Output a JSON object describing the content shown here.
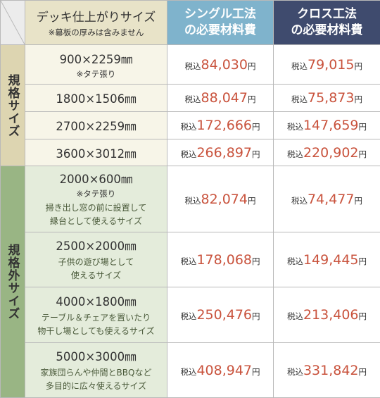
{
  "header": {
    "size_title": "デッキ仕上がりサイズ",
    "size_note": "※幕板の厚みは含みません",
    "single_line1": "シングル工法",
    "single_line2": "の必要材料費",
    "cross_line1": "クロス工法",
    "cross_line2": "の必要材料費"
  },
  "categories": {
    "standard": "規格サイズ",
    "custom": "規格外サイズ"
  },
  "price_prefix": "税込",
  "price_suffix": "円",
  "colors": {
    "price_number": "#c9533d",
    "single_header": "#7fb3cc",
    "cross_header": "#3f4b6e",
    "standard_category": "#ddd5b1",
    "custom_category": "#99b584"
  },
  "rows": [
    {
      "size": "900×2259㎜",
      "note": "※タテ張り",
      "desc1": "",
      "desc2": "",
      "single": "84,030",
      "cross": "79,015"
    },
    {
      "size": "1800×1506㎜",
      "note": "",
      "desc1": "",
      "desc2": "",
      "single": "88,047",
      "cross": "75,873"
    },
    {
      "size": "2700×2259㎜",
      "note": "",
      "desc1": "",
      "desc2": "",
      "single": "172,666",
      "cross": "147,659"
    },
    {
      "size": "3600×3012㎜",
      "note": "",
      "desc1": "",
      "desc2": "",
      "single": "266,897",
      "cross": "220,902"
    },
    {
      "size": "2000×600㎜",
      "note": "※タテ張り",
      "desc1": "掃き出し窓の前に設置して",
      "desc2": "縁台として使えるサイズ",
      "single": "82,074",
      "cross": "74,477"
    },
    {
      "size": "2500×2000㎜",
      "note": "",
      "desc1": "子供の遊び場として",
      "desc2": "使えるサイズ",
      "single": "178,068",
      "cross": "149,445"
    },
    {
      "size": "4000×1800㎜",
      "note": "",
      "desc1": "テーブル＆チェアを置いたり",
      "desc2": "物干し場としても使えるサイズ",
      "single": "250,476",
      "cross": "213,406"
    },
    {
      "size": "5000×3000㎜",
      "note": "",
      "desc1": "家族団らんや仲間とBBQなど",
      "desc2": "多目的に広々使えるサイズ",
      "single": "408,947",
      "cross": "331,842"
    }
  ]
}
